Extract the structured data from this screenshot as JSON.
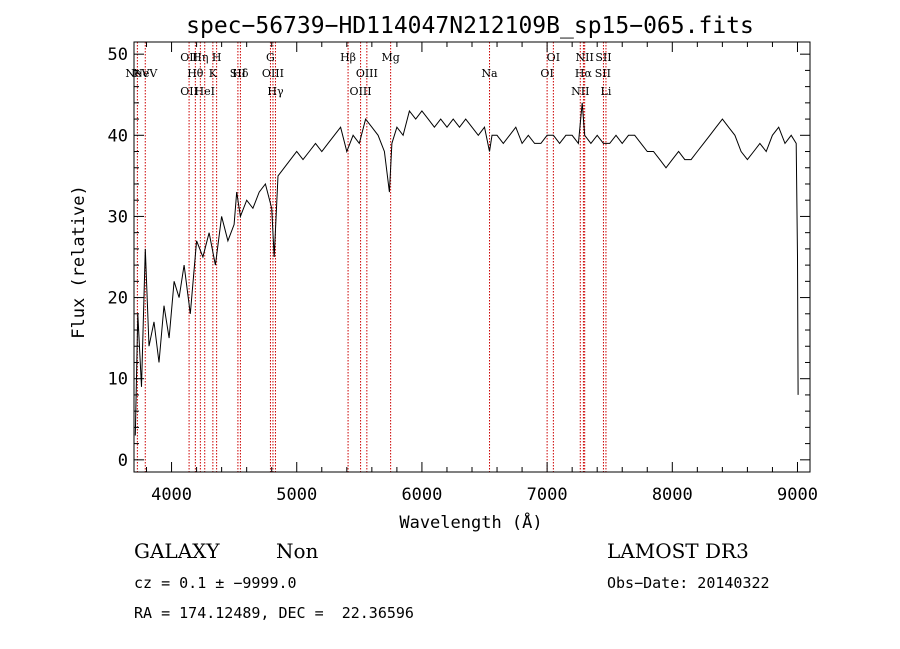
{
  "chart_data": {
    "type": "line",
    "title": "spec−56739−HD114047N212109B_sp15−065.fits",
    "xlabel": "Wavelength (Å)",
    "ylabel": "Flux (relative)",
    "xlim": [
      3700,
      9100
    ],
    "ylim": [
      -1.5,
      51.5
    ],
    "xticks": [
      4000,
      5000,
      6000,
      7000,
      8000,
      9000
    ],
    "yticks": [
      0,
      10,
      20,
      30,
      40,
      50
    ],
    "grid": false,
    "colors": {
      "spectrum": "#000000",
      "line_markers": "#cc0000",
      "axes": "#000000"
    },
    "series": [
      {
        "values_note": "",
        "x": [
          3710,
          3730,
          3760,
          3790,
          3820,
          3860,
          3900,
          3940,
          3980,
          4020,
          4060,
          4100,
          4150,
          4200,
          4250,
          4300,
          4350,
          4400,
          4450,
          4500,
          4520,
          4550,
          4600,
          4650,
          4700,
          4750,
          4800,
          4820,
          4850,
          4900,
          4950,
          5000,
          5050,
          5100,
          5150,
          5200,
          5250,
          5300,
          5350,
          5400,
          5450,
          5500,
          5550,
          5600,
          5650,
          5700,
          5740,
          5760,
          5800,
          5850,
          5900,
          5950,
          6000,
          6050,
          6100,
          6150,
          6200,
          6250,
          6300,
          6350,
          6400,
          6450,
          6500,
          6540,
          6560,
          6600,
          6650,
          6700,
          6750,
          6800,
          6850,
          6900,
          6950,
          7000,
          7050,
          7100,
          7150,
          7200,
          7250,
          7280,
          7300,
          7350,
          7400,
          7450,
          7500,
          7550,
          7600,
          7650,
          7700,
          7750,
          7800,
          7850,
          7900,
          7950,
          8000,
          8050,
          8100,
          8150,
          8200,
          8250,
          8300,
          8350,
          8400,
          8450,
          8500,
          8550,
          8600,
          8650,
          8700,
          8750,
          8800,
          8850,
          8900,
          8950,
          8990,
          9000,
          9005
        ],
        "y": [
          3,
          18,
          9,
          26,
          14,
          17,
          12,
          19,
          15,
          22,
          20,
          24,
          18,
          27,
          25,
          28,
          24,
          30,
          27,
          29,
          33,
          30,
          32,
          31,
          33,
          34,
          31,
          25,
          35,
          36,
          37,
          38,
          37,
          38,
          39,
          38,
          39,
          40,
          41,
          38,
          40,
          39,
          42,
          41,
          40,
          38,
          33,
          39,
          41,
          40,
          43,
          42,
          43,
          42,
          41,
          42,
          41,
          42,
          41,
          42,
          41,
          40,
          41,
          38,
          40,
          40,
          39,
          40,
          41,
          39,
          40,
          39,
          39,
          40,
          40,
          39,
          40,
          40,
          39,
          44,
          40,
          39,
          40,
          39,
          39,
          40,
          39,
          40,
          40,
          39,
          38,
          38,
          37,
          36,
          37,
          38,
          37,
          37,
          38,
          39,
          40,
          41,
          42,
          41,
          40,
          38,
          37,
          38,
          39,
          38,
          40,
          41,
          39,
          40,
          39,
          25,
          8
        ]
      }
    ],
    "spectral_lines": [
      {
        "name": "NeV",
        "wave": 3727,
        "row": 1
      },
      {
        "name": "NeV",
        "wave": 3790,
        "row": 2
      },
      {
        "name": "OII",
        "wave": 4140,
        "row": 0
      },
      {
        "name": "OII",
        "wave": 4140,
        "row": 3
      },
      {
        "name": "Hη",
        "wave": 4230,
        "row": 0
      },
      {
        "name": "Hθ",
        "wave": 4190,
        "row": 1
      },
      {
        "name": "HeI",
        "wave": 4265,
        "row": 3
      },
      {
        "name": "H",
        "wave": 4360,
        "row": 0
      },
      {
        "name": "K",
        "wave": 4330,
        "row": 1
      },
      {
        "name": "Hδ",
        "wave": 4550,
        "row": 1
      },
      {
        "name": "SII",
        "wave": 4530,
        "row": 2
      },
      {
        "name": "G",
        "wave": 4790,
        "row": 0
      },
      {
        "name": "OIII",
        "wave": 4810,
        "row": 1
      },
      {
        "name": "Hγ",
        "wave": 4830,
        "row": 3
      },
      {
        "name": "Hβ",
        "wave": 5410,
        "row": 0
      },
      {
        "name": "OIII",
        "wave": 5560,
        "row": 1
      },
      {
        "name": "OIII",
        "wave": 5510,
        "row": 3
      },
      {
        "name": "Mg",
        "wave": 5750,
        "row": 0
      },
      {
        "name": "Na",
        "wave": 6540,
        "row": 2
      },
      {
        "name": "OI",
        "wave": 7050,
        "row": 0
      },
      {
        "name": "OI",
        "wave": 7000,
        "row": 1
      },
      {
        "name": "NII",
        "wave": 7300,
        "row": 0
      },
      {
        "name": "Hα",
        "wave": 7290,
        "row": 1
      },
      {
        "name": "NII",
        "wave": 7265,
        "row": 3
      },
      {
        "name": "SII",
        "wave": 7450,
        "row": 0
      },
      {
        "name": "SII",
        "wave": 7445,
        "row": 1
      },
      {
        "name": "Li",
        "wave": 7470,
        "row": 3
      }
    ]
  },
  "info": {
    "object_class": "GALAXY",
    "subclass": "Non",
    "survey": "LAMOST DR3",
    "redshift_line": "cz = 0.1 ± −9999.0",
    "obs_date": "Obs−Date: 20140322",
    "coords": "RA = 174.12489, DEC =  22.36596"
  }
}
